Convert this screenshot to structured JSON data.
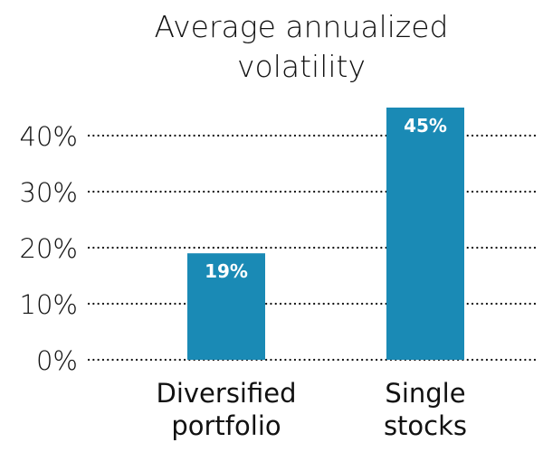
{
  "chart_data": {
    "type": "bar",
    "title_lines": [
      "Average annualized",
      "volatility"
    ],
    "categories": [
      [
        "Diversified",
        "portfolio"
      ],
      [
        "Single",
        "stocks"
      ]
    ],
    "values": [
      19,
      45
    ],
    "data_labels": [
      "19%",
      "45%"
    ],
    "yticks": [
      0,
      10,
      20,
      30,
      40
    ],
    "ytick_labels": [
      "0%",
      "10%",
      "20%",
      "30%",
      "40%"
    ],
    "ylim": [
      0,
      45
    ],
    "xlabel": "",
    "ylabel": "",
    "grid": "dotted horizontal",
    "bar_color": "#1a8ab5"
  }
}
